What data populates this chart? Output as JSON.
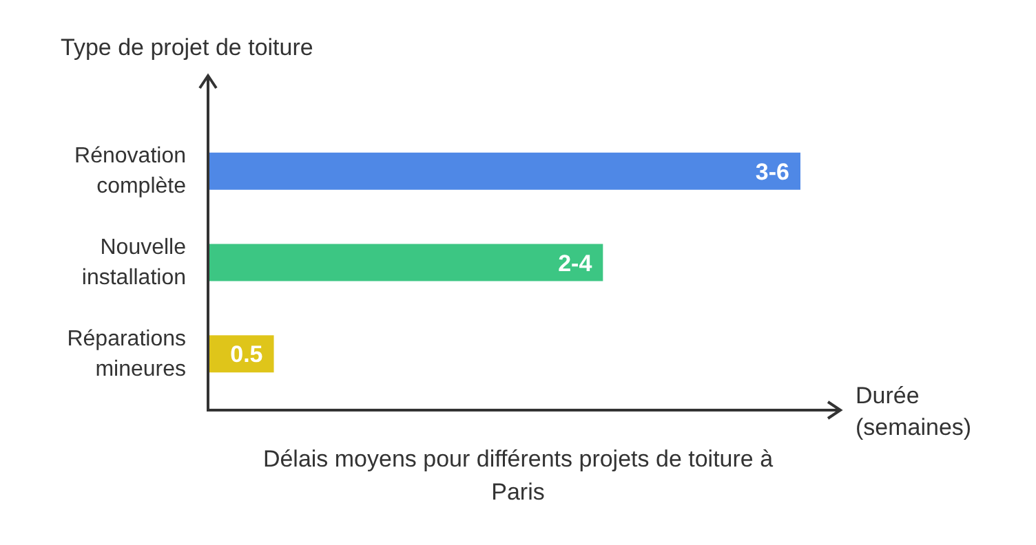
{
  "chart_data": {
    "type": "bar",
    "orientation": "horizontal",
    "xlim": [
      0,
      4.5
    ],
    "title": "Délais moyens pour différents projets de toiture à Paris",
    "xlabel": "Durée (semaines)",
    "ylabel": "Type de projet de toiture",
    "categories": [
      "Rénovation complète",
      "Nouvelle installation",
      "Réparations mineures"
    ],
    "values": [
      4.5,
      3,
      0.5
    ],
    "colors": [
      "#4f88e6",
      "#3cc683",
      "#dfc51a"
    ],
    "value_labels": [
      "3-6",
      "2-4",
      "0.5"
    ]
  }
}
